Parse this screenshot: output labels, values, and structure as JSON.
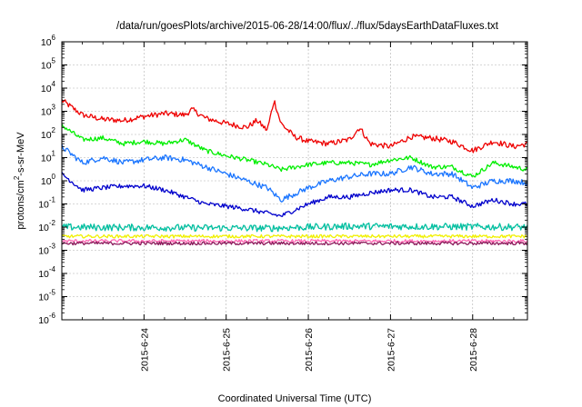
{
  "chart_data": {
    "type": "line",
    "title": "/data/run/goesPlots/archive/2015-06-28/14:00/flux/../flux/5daysEarthDataFluxes.txt",
    "xlabel": "Coordinated Universal Time (UTC)",
    "ylabel": {
      "prefix": "protons/cm",
      "sup": "2",
      "suffix": "-s-sr-MeV"
    },
    "x_unit": "date-time (UTC)",
    "x_range": [
      "2015-06-23T00:00",
      "2015-06-28T16:00"
    ],
    "x_ticks": [
      "2015-6-24",
      "2015-6-25",
      "2015-6-26",
      "2015-6-27",
      "2015-6-28"
    ],
    "y_scale": "log",
    "ylim": [
      1e-06,
      1000000.0
    ],
    "y_ticks": [
      {
        "base": "10",
        "exp": "-6"
      },
      {
        "base": "10",
        "exp": "-5"
      },
      {
        "base": "10",
        "exp": "-4"
      },
      {
        "base": "10",
        "exp": "-3"
      },
      {
        "base": "10",
        "exp": "-2"
      },
      {
        "base": "10",
        "exp": "-1"
      },
      {
        "base": "10",
        "exp": "0"
      },
      {
        "base": "10",
        "exp": "1"
      },
      {
        "base": "10",
        "exp": "2"
      },
      {
        "base": "10",
        "exp": "3"
      },
      {
        "base": "10",
        "exp": "4"
      },
      {
        "base": "10",
        "exp": "5"
      },
      {
        "base": "10",
        "exp": "6"
      }
    ],
    "grid": true,
    "legend": "none",
    "series": [
      {
        "color": "#ee0000",
        "noise_decades": 0.12,
        "points": [
          [
            "2015-06-23T00:00",
            3000
          ],
          [
            "2015-06-23T06:00",
            700
          ],
          [
            "2015-06-23T12:00",
            450
          ],
          [
            "2015-06-23T18:00",
            400
          ],
          [
            "2015-06-24T00:00",
            600
          ],
          [
            "2015-06-24T06:00",
            800
          ],
          [
            "2015-06-24T12:00",
            700
          ],
          [
            "2015-06-24T14:00",
            1200
          ],
          [
            "2015-06-24T18:00",
            500
          ],
          [
            "2015-06-25T00:00",
            300
          ],
          [
            "2015-06-25T06:00",
            200
          ],
          [
            "2015-06-25T09:00",
            400
          ],
          [
            "2015-06-25T12:00",
            150
          ],
          [
            "2015-06-25T14:00",
            3000
          ],
          [
            "2015-06-25T16:00",
            300
          ],
          [
            "2015-06-25T20:00",
            80
          ],
          [
            "2015-06-26T00:00",
            50
          ],
          [
            "2015-06-26T06:00",
            40
          ],
          [
            "2015-06-26T12:00",
            60
          ],
          [
            "2015-06-26T15:00",
            200
          ],
          [
            "2015-06-26T18:00",
            40
          ],
          [
            "2015-06-27T00:00",
            30
          ],
          [
            "2015-06-27T06:00",
            80
          ],
          [
            "2015-06-27T12:00",
            70
          ],
          [
            "2015-06-27T18:00",
            50
          ],
          [
            "2015-06-28T00:00",
            20
          ],
          [
            "2015-06-28T06:00",
            50
          ],
          [
            "2015-06-28T12:00",
            30
          ],
          [
            "2015-06-28T16:00",
            40
          ]
        ]
      },
      {
        "color": "#00ee00",
        "noise_decades": 0.1,
        "points": [
          [
            "2015-06-23T00:00",
            250
          ],
          [
            "2015-06-23T06:00",
            60
          ],
          [
            "2015-06-23T12:00",
            70
          ],
          [
            "2015-06-23T18:00",
            40
          ],
          [
            "2015-06-24T00:00",
            50
          ],
          [
            "2015-06-24T06:00",
            40
          ],
          [
            "2015-06-24T12:00",
            60
          ],
          [
            "2015-06-24T18:00",
            20
          ],
          [
            "2015-06-25T00:00",
            12
          ],
          [
            "2015-06-25T06:00",
            8
          ],
          [
            "2015-06-25T12:00",
            5
          ],
          [
            "2015-06-25T16:00",
            3
          ],
          [
            "2015-06-26T00:00",
            5
          ],
          [
            "2015-06-26T06:00",
            6
          ],
          [
            "2015-06-26T12:00",
            6
          ],
          [
            "2015-06-26T18:00",
            5
          ],
          [
            "2015-06-27T00:00",
            8
          ],
          [
            "2015-06-27T06:00",
            10
          ],
          [
            "2015-06-27T12:00",
            4
          ],
          [
            "2015-06-27T18:00",
            4
          ],
          [
            "2015-06-28T00:00",
            1.5
          ],
          [
            "2015-06-28T06:00",
            6
          ],
          [
            "2015-06-28T12:00",
            4
          ],
          [
            "2015-06-28T16:00",
            3
          ]
        ]
      },
      {
        "color": "#1a75ff",
        "noise_decades": 0.12,
        "points": [
          [
            "2015-06-23T00:00",
            30
          ],
          [
            "2015-06-23T06:00",
            6
          ],
          [
            "2015-06-23T12:00",
            10
          ],
          [
            "2015-06-23T18:00",
            6
          ],
          [
            "2015-06-24T00:00",
            8
          ],
          [
            "2015-06-24T06:00",
            10
          ],
          [
            "2015-06-24T12:00",
            8
          ],
          [
            "2015-06-24T18:00",
            4
          ],
          [
            "2015-06-25T00:00",
            2
          ],
          [
            "2015-06-25T06:00",
            1
          ],
          [
            "2015-06-25T12:00",
            0.5
          ],
          [
            "2015-06-25T16:00",
            0.15
          ],
          [
            "2015-06-26T00:00",
            0.5
          ],
          [
            "2015-06-26T06:00",
            1
          ],
          [
            "2015-06-26T12:00",
            1.5
          ],
          [
            "2015-06-26T18:00",
            2
          ],
          [
            "2015-06-27T00:00",
            2
          ],
          [
            "2015-06-27T06:00",
            4
          ],
          [
            "2015-06-27T12:00",
            2
          ],
          [
            "2015-06-27T18:00",
            2
          ],
          [
            "2015-06-28T00:00",
            0.5
          ],
          [
            "2015-06-28T06:00",
            1
          ],
          [
            "2015-06-28T12:00",
            1
          ],
          [
            "2015-06-28T16:00",
            0.8
          ]
        ]
      },
      {
        "color": "#0000cc",
        "noise_decades": 0.1,
        "points": [
          [
            "2015-06-23T00:00",
            2
          ],
          [
            "2015-06-23T06:00",
            0.4
          ],
          [
            "2015-06-23T12:00",
            0.5
          ],
          [
            "2015-06-23T18:00",
            0.6
          ],
          [
            "2015-06-24T00:00",
            0.6
          ],
          [
            "2015-06-24T06:00",
            0.4
          ],
          [
            "2015-06-24T12:00",
            0.2
          ],
          [
            "2015-06-24T18:00",
            0.1
          ],
          [
            "2015-06-25T00:00",
            0.08
          ],
          [
            "2015-06-25T06:00",
            0.06
          ],
          [
            "2015-06-25T12:00",
            0.04
          ],
          [
            "2015-06-25T16:00",
            0.03
          ],
          [
            "2015-06-26T00:00",
            0.1
          ],
          [
            "2015-06-26T06:00",
            0.2
          ],
          [
            "2015-06-26T12:00",
            0.2
          ],
          [
            "2015-06-26T18:00",
            0.3
          ],
          [
            "2015-06-27T00:00",
            0.4
          ],
          [
            "2015-06-27T06:00",
            0.4
          ],
          [
            "2015-06-27T12:00",
            0.2
          ],
          [
            "2015-06-27T18:00",
            0.2
          ],
          [
            "2015-06-28T00:00",
            0.08
          ],
          [
            "2015-06-28T06:00",
            0.15
          ],
          [
            "2015-06-28T12:00",
            0.1
          ],
          [
            "2015-06-28T16:00",
            0.1
          ]
        ]
      },
      {
        "color": "#00bfa0",
        "noise_decades": 0.15,
        "points": [
          [
            "2015-06-23T00:00",
            0.01
          ],
          [
            "2015-06-25T12:00",
            0.009
          ],
          [
            "2015-06-26T12:00",
            0.011
          ],
          [
            "2015-06-28T16:00",
            0.01
          ]
        ]
      },
      {
        "color": "#f0f000",
        "noise_decades": 0.07,
        "points": [
          [
            "2015-06-23T00:00",
            0.004
          ],
          [
            "2015-06-28T16:00",
            0.004
          ]
        ]
      },
      {
        "color": "#ff69b4",
        "noise_decades": 0.07,
        "points": [
          [
            "2015-06-23T00:00",
            0.0025
          ],
          [
            "2015-06-28T16:00",
            0.0025
          ]
        ]
      },
      {
        "color": "#8b1a5b",
        "noise_decades": 0.07,
        "points": [
          [
            "2015-06-23T00:00",
            0.002
          ],
          [
            "2015-06-28T16:00",
            0.002
          ]
        ]
      }
    ]
  }
}
